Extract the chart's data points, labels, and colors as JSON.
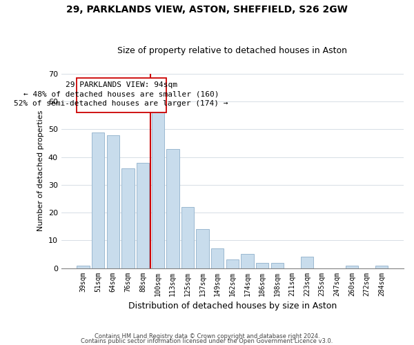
{
  "title": "29, PARKLANDS VIEW, ASTON, SHEFFIELD, S26 2GW",
  "subtitle": "Size of property relative to detached houses in Aston",
  "xlabel": "Distribution of detached houses by size in Aston",
  "ylabel": "Number of detached properties",
  "bar_color": "#c8dcec",
  "bar_edge_color": "#9ab8d0",
  "bins": [
    "39sqm",
    "51sqm",
    "64sqm",
    "76sqm",
    "88sqm",
    "100sqm",
    "113sqm",
    "125sqm",
    "137sqm",
    "149sqm",
    "162sqm",
    "174sqm",
    "186sqm",
    "198sqm",
    "211sqm",
    "223sqm",
    "235sqm",
    "247sqm",
    "260sqm",
    "272sqm",
    "284sqm"
  ],
  "values": [
    1,
    49,
    48,
    36,
    38,
    58,
    43,
    22,
    14,
    7,
    3,
    5,
    2,
    2,
    0,
    4,
    0,
    0,
    1,
    0,
    1
  ],
  "ylim": [
    0,
    70
  ],
  "yticks": [
    0,
    10,
    20,
    30,
    40,
    50,
    60,
    70
  ],
  "property_line_x": 4.5,
  "property_line_color": "#cc0000",
  "annotation_title": "29 PARKLANDS VIEW: 94sqm",
  "annotation_line1": "← 48% of detached houses are smaller (160)",
  "annotation_line2": "52% of semi-detached houses are larger (174) →",
  "footer1": "Contains HM Land Registry data © Crown copyright and database right 2024.",
  "footer2": "Contains public sector information licensed under the Open Government Licence v3.0."
}
